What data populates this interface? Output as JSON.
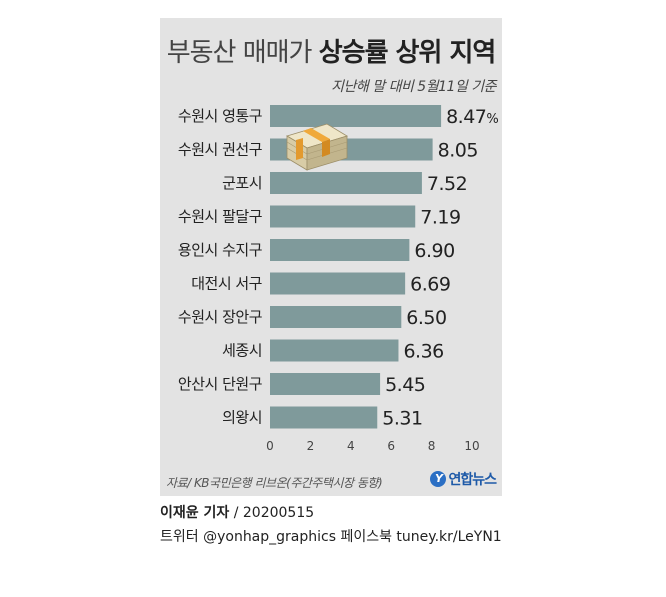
{
  "header": {
    "title_regular": "부동산 매매가",
    "title_bold": "상승률 상위 지역",
    "subtitle": "지난해 말 대비 5월11일 기준"
  },
  "chart_data": {
    "type": "bar",
    "orientation": "horizontal",
    "categories": [
      "수원시 영통구",
      "수원시 권선구",
      "군포시",
      "수원시 팔달구",
      "용인시 수지구",
      "대전시 서구",
      "수원시 장안구",
      "세종시",
      "안산시 단원구",
      "의왕시"
    ],
    "values": [
      8.47,
      8.05,
      7.52,
      7.19,
      6.9,
      6.69,
      6.5,
      6.36,
      5.45,
      5.31
    ],
    "value_labels": [
      "8.47%",
      "8.05",
      "7.52",
      "7.19",
      "6.90",
      "6.69",
      "6.50",
      "6.36",
      "5.45",
      "5.31"
    ],
    "xlim": [
      0,
      10
    ],
    "xticks": [
      "0",
      "2",
      "4",
      "6",
      "8",
      "10"
    ],
    "bar_color": "#7f9a9b",
    "grid": false
  },
  "footer": {
    "source": "자료/ KB국민은행 리브온(주간주택시장 동향)",
    "logo_text": "연합뉴스",
    "logo_mark": "Y"
  },
  "credits": {
    "reporter": "이재윤 기자",
    "date": " / 20200515",
    "sns": "트위터 @yonhap_graphics  페이스북 tuney.kr/LeYN1"
  }
}
